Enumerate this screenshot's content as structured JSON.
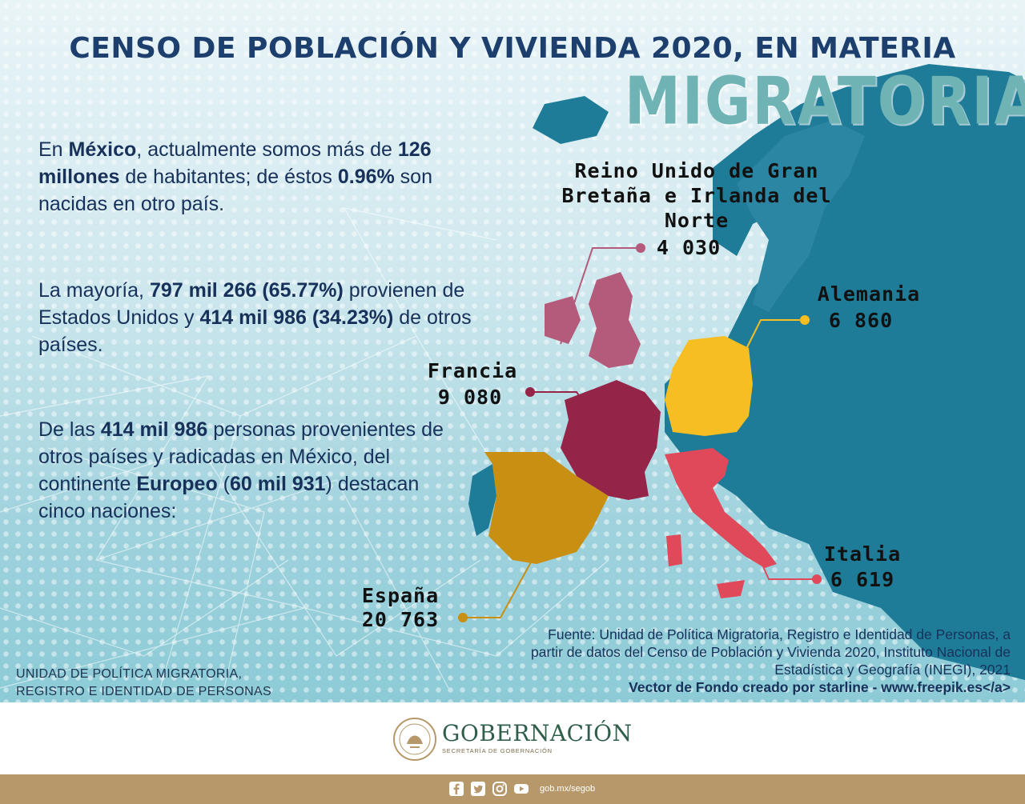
{
  "header": {
    "title": "CENSO DE POBLACIÓN Y VIVIENDA 2020, EN MATERIA",
    "subtitle": "MIGRATORIA"
  },
  "intro": {
    "p1": {
      "a": "En ",
      "b": "México",
      "c": ", actualmente somos más de ",
      "d": "126 millones",
      "e": " de habitantes; de éstos ",
      "f": "0.96%",
      "g": " son nacidas en otro país."
    },
    "p2": {
      "a": "La mayoría, ",
      "b": "797 mil 266 (65.77%)",
      "c": " provienen de Estados Unidos y ",
      "d": "414 mil 986 (34.23%)",
      "e": " de otros países."
    },
    "p3": {
      "a": "De las ",
      "b": "414 mil 986",
      "c": " personas provenientes de otros países y radicadas en México, del continente ",
      "d": "Europeo",
      "e": " (",
      "f": "60 mil 931",
      "g": ") destacan cinco naciones:"
    }
  },
  "countries": {
    "uk": {
      "name": "Reino Unido de Gran Bretaña e Irlanda del Norte",
      "value": "4 030",
      "color": "#b45a7a"
    },
    "germany": {
      "name": "Alemania",
      "value": "6 860",
      "color": "#f6be22"
    },
    "france": {
      "name": "Francia",
      "value": "9 080",
      "color": "#952449"
    },
    "italy": {
      "name": "Italia",
      "value": "6 619",
      "color": "#e0495a"
    },
    "spain": {
      "name": "España",
      "value": "20 763",
      "color": "#c98f12"
    }
  },
  "source": {
    "text": "Fuente: Unidad de Política Migratoria, Registro e Identidad de Personas, a partir de datos del Censo de Población y Vivienda 2020, Instituto Nacional de Estadística y Geografía (INEGI), 2021",
    "credit": "Vector de Fondo creado por starline - www.freepik.es</a>"
  },
  "unit": {
    "line1": "UNIDAD DE POLÍTICA MIGRATORIA,",
    "line2": "REGISTRO E IDENTIDAD DE PERSONAS"
  },
  "footer": {
    "name": "GOBERNACIÓN",
    "sub": "SECRETARÍA DE GOBERNACIÓN",
    "handle": "gob.mx/segob",
    "social_icons": [
      "facebook-icon",
      "twitter-icon",
      "instagram-icon",
      "youtube-icon"
    ],
    "bar_color": "#b6986b"
  },
  "colors": {
    "title": "#1d3f6e",
    "text": "#17315a",
    "europe": "#1f7c98",
    "water": "#9fd2dd"
  }
}
